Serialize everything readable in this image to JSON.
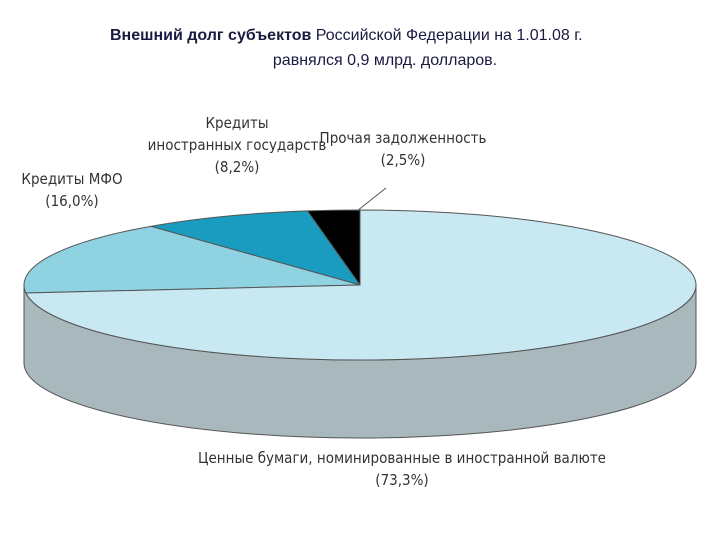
{
  "chart_data": {
    "type": "pie3d",
    "title": [
      "Внешний долг субъектов",
      "Российской Федерации на 1.01.08 г.",
      "равнялся 0,9 млрд. долларов."
    ],
    "categories": [
      [
        "Прочая задолженность"
      ],
      [
        "Кредиты",
        "иностранных государств"
      ],
      [
        "Кредиты МФО"
      ],
      [
        "Ценные бумаги, номинированные в иностранной валюте"
      ]
    ],
    "values": [
      2.5,
      8.2,
      16.0,
      73.3
    ],
    "value_labels": [
      "(2,5%)",
      "(8,2%)",
      "(16,0%)",
      "(73,3%)"
    ],
    "colors": [
      "#000000",
      "#1a9cc0",
      "#8fd2e2",
      "#c8e8f2"
    ]
  }
}
